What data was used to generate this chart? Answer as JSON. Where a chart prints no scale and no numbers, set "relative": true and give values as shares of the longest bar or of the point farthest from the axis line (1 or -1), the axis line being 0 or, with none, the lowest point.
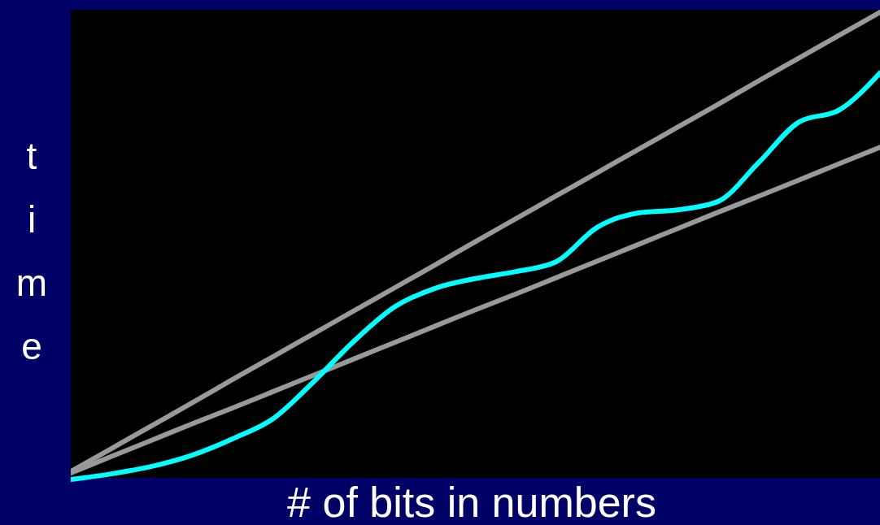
{
  "chart_data": {
    "type": "line",
    "relative": true,
    "xlabel": "# of bits in numbers",
    "ylabel": "time",
    "categories": [
      null,
      null,
      null,
      null,
      null,
      null,
      null,
      null,
      null,
      null,
      null,
      null,
      null,
      null,
      null,
      null,
      null,
      null,
      null,
      null,
      null
    ],
    "series": [
      {
        "color": "#999999",
        "values": [
          0.017,
          0.066,
          0.115,
          0.164,
          0.214,
          0.263,
          0.312,
          0.361,
          0.41,
          0.459,
          0.509,
          0.558,
          0.607,
          0.656,
          0.705,
          0.754,
          0.803,
          0.853,
          0.902,
          0.951,
          1.0
        ]
      },
      {
        "color": "#999999",
        "values": [
          0.014,
          0.049,
          0.084,
          0.119,
          0.153,
          0.188,
          0.223,
          0.258,
          0.293,
          0.328,
          0.363,
          0.397,
          0.432,
          0.467,
          0.502,
          0.537,
          0.572,
          0.606,
          0.641,
          0.676,
          0.711
        ]
      },
      {
        "color": "#00ffff",
        "values": [
          0,
          0.012,
          0.028,
          0.052,
          0.087,
          0.13,
          0.209,
          0.296,
          0.369,
          0.409,
          0.43,
          0.445,
          0.466,
          0.539,
          0.57,
          0.577,
          0.595,
          0.678,
          0.765,
          0.791,
          0.87
        ]
      }
    ]
  }
}
